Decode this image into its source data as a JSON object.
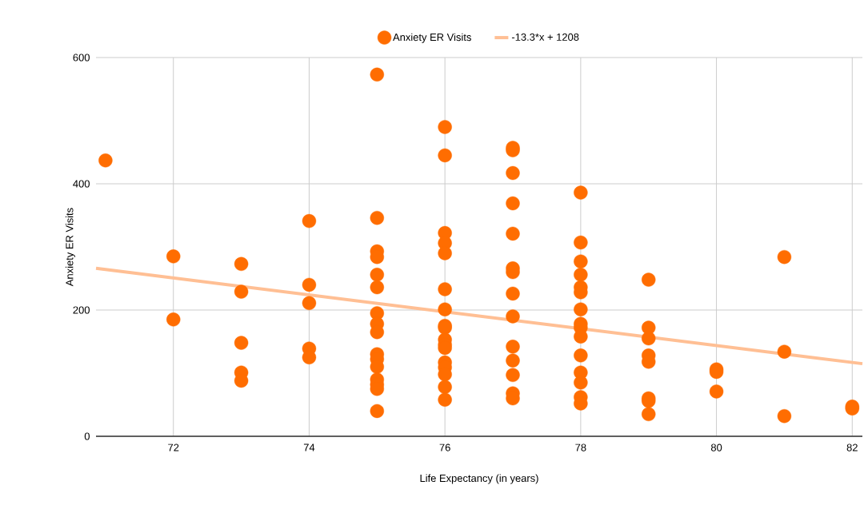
{
  "chart_data": {
    "type": "scatter",
    "xlabel": "Life Expectancy (in years)",
    "ylabel": "Anxiety ER Visits",
    "xlim": [
      70.86,
      82.15
    ],
    "ylim": [
      0,
      600
    ],
    "xticks": [
      72,
      74,
      76,
      78,
      80,
      82
    ],
    "yticks": [
      0,
      200,
      400,
      600
    ],
    "grid": true,
    "legend": "top",
    "series": [
      {
        "name": "Anxiety ER Visits",
        "marker": "circle",
        "color": "#ff6d01",
        "x": [
          71,
          72,
          72,
          73,
          73,
          73,
          73,
          73,
          74,
          74,
          74,
          74,
          74,
          75,
          75,
          75,
          75,
          75,
          75,
          75,
          75,
          75,
          75,
          75,
          75,
          75,
          75,
          75,
          75,
          76,
          76,
          76,
          76,
          76,
          76,
          76,
          76,
          76,
          76,
          76,
          76,
          76,
          76,
          76,
          76,
          76,
          77,
          77,
          77,
          77,
          77,
          77,
          77,
          77,
          77,
          77,
          77,
          77,
          77,
          77,
          78,
          78,
          78,
          78,
          78,
          78,
          78,
          78,
          78,
          78,
          78,
          78,
          78,
          78,
          78,
          79,
          79,
          79,
          79,
          79,
          79,
          79,
          79,
          80,
          80,
          80,
          81,
          81,
          81,
          82,
          82
        ],
        "values": [
          437,
          285,
          185,
          273,
          229,
          148,
          101,
          88,
          341,
          240,
          211,
          139,
          125,
          573,
          346,
          293,
          284,
          256,
          236,
          195,
          178,
          165,
          130,
          122,
          110,
          90,
          82,
          75,
          40,
          490,
          445,
          322,
          306,
          290,
          233,
          201,
          175,
          172,
          153,
          145,
          140,
          117,
          109,
          98,
          78,
          58,
          457,
          453,
          417,
          369,
          321,
          266,
          260,
          226,
          190,
          142,
          120,
          97,
          68,
          60,
          386,
          307,
          277,
          256,
          236,
          228,
          201,
          178,
          172,
          158,
          128,
          101,
          85,
          62,
          52,
          248,
          172,
          155,
          128,
          118,
          60,
          56,
          35,
          106,
          102,
          71,
          284,
          134,
          32,
          47,
          44
        ]
      },
      {
        "name": "-13.3*x + 1208",
        "type": "line",
        "color": "#ffbf94",
        "x": [
          70.86,
          82.15
        ],
        "values": [
          266,
          115
        ]
      }
    ]
  }
}
